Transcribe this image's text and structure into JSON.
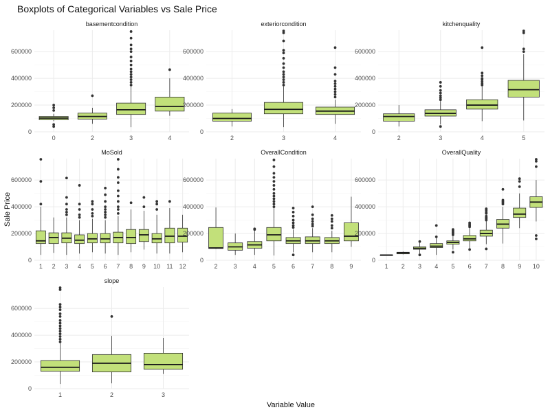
{
  "chart_data": {
    "type": "boxplot",
    "title": "Boxplots of Categorical Variables vs Sale Price",
    "xlabel": "Variable Value",
    "ylabel": "Sale Price",
    "ylim": [
      0,
      760000
    ],
    "yticks": [
      0,
      200000,
      400000,
      600000
    ],
    "ytick_labels": [
      "0",
      "200000",
      "400000",
      "600000"
    ],
    "grid": true,
    "colors": {
      "box_fill": "#c2e07a",
      "box_stroke": "#2e2e2e",
      "grid": "#ebebeb",
      "point": "#333333"
    },
    "panels": [
      {
        "name": "basementcondition",
        "categories": [
          "0",
          "2",
          "3",
          "4"
        ],
        "boxes": [
          {
            "q1": 90000,
            "median": 103000,
            "q3": 115000,
            "whisker_low": 80000,
            "whisker_high": 135000,
            "outliers": [
              40000,
              55000,
              160000,
              180000,
              200000
            ]
          },
          {
            "q1": 95000,
            "median": 115000,
            "q3": 140000,
            "whisker_low": 60000,
            "whisker_high": 180000,
            "outliers": [
              270000
            ]
          },
          {
            "q1": 130000,
            "median": 165000,
            "q3": 215000,
            "whisker_low": 35000,
            "whisker_high": 340000,
            "outliers": [
              350000,
              370000,
              390000,
              410000,
              430000,
              450000,
              470000,
              500000,
              530000,
              560000,
              600000,
              620000,
              650000,
              700000,
              750000
            ]
          },
          {
            "q1": 155000,
            "median": 190000,
            "q3": 260000,
            "whisker_low": 120000,
            "whisker_high": 400000,
            "outliers": [
              465000
            ]
          }
        ]
      },
      {
        "name": "exteriorcondition",
        "categories": [
          "2",
          "3",
          "4"
        ],
        "boxes": [
          {
            "q1": 80000,
            "median": 100000,
            "q3": 140000,
            "whisker_low": 40000,
            "whisker_high": 170000,
            "outliers": []
          },
          {
            "q1": 135000,
            "median": 168000,
            "q3": 220000,
            "whisker_low": 35000,
            "whisker_high": 340000,
            "outliers": [
              350000,
              370000,
              390000,
              410000,
              430000,
              450000,
              480000,
              510000,
              550000,
              590000,
              610000,
              680000,
              740000,
              755000
            ]
          },
          {
            "q1": 130000,
            "median": 155000,
            "q3": 185000,
            "whisker_low": 60000,
            "whisker_high": 240000,
            "outliers": [
              260000,
              280000,
              300000,
              320000,
              340000,
              360000,
              380000,
              430000,
              480000,
              630000
            ]
          }
        ]
      },
      {
        "name": "kitchenquality",
        "categories": [
          "2",
          "3",
          "4",
          "5"
        ],
        "boxes": [
          {
            "q1": 80000,
            "median": 115000,
            "q3": 135000,
            "whisker_low": 40000,
            "whisker_high": 200000,
            "outliers": []
          },
          {
            "q1": 118000,
            "median": 138000,
            "q3": 165000,
            "whisker_low": 55000,
            "whisker_high": 230000,
            "outliers": [
              40000,
              240000,
              255000,
              270000,
              290000,
              310000,
              340000,
              370000
            ]
          },
          {
            "q1": 170000,
            "median": 200000,
            "q3": 240000,
            "whisker_low": 80000,
            "whisker_high": 340000,
            "outliers": [
              350000,
              360000,
              375000,
              390000,
              400000,
              420000,
              440000,
              630000
            ]
          },
          {
            "q1": 260000,
            "median": 315000,
            "q3": 385000,
            "whisker_low": 85000,
            "whisker_high": 580000,
            "outliers": [
              600000,
              620000,
              740000,
              755000
            ]
          }
        ]
      },
      {
        "name": "MoSold",
        "categories": [
          "1",
          "2",
          "3",
          "4",
          "5",
          "6",
          "7",
          "8",
          "9",
          "10",
          "11",
          "12"
        ],
        "boxes": [
          {
            "q1": 125000,
            "median": 145000,
            "q3": 220000,
            "whisker_low": 40000,
            "whisker_high": 400000,
            "outliers": [
              420000,
              590000,
              755000
            ]
          },
          {
            "q1": 125000,
            "median": 170000,
            "q3": 205000,
            "whisker_low": 55000,
            "whisker_high": 320000,
            "outliers": []
          },
          {
            "q1": 130000,
            "median": 165000,
            "q3": 205000,
            "whisker_low": 40000,
            "whisker_high": 320000,
            "outliers": [
              340000,
              360000,
              380000,
              420000,
              470000,
              615000
            ]
          },
          {
            "q1": 125000,
            "median": 150000,
            "q3": 190000,
            "whisker_low": 50000,
            "whisker_high": 300000,
            "outliers": [
              320000,
              340000,
              380000,
              420000,
              560000
            ]
          },
          {
            "q1": 130000,
            "median": 160000,
            "q3": 200000,
            "whisker_low": 60000,
            "whisker_high": 310000,
            "outliers": [
              330000,
              350000,
              380000,
              420000,
              440000
            ]
          },
          {
            "q1": 130000,
            "median": 160000,
            "q3": 200000,
            "whisker_low": 50000,
            "whisker_high": 300000,
            "outliers": [
              320000,
              340000,
              360000,
              380000,
              400000,
              440000,
              490000,
              540000
            ]
          },
          {
            "q1": 130000,
            "median": 170000,
            "q3": 210000,
            "whisker_low": 40000,
            "whisker_high": 330000,
            "outliers": [
              350000,
              380000,
              400000,
              440000,
              480000,
              520000,
              580000,
              620000,
              680000,
              755000
            ]
          },
          {
            "q1": 125000,
            "median": 170000,
            "q3": 230000,
            "whisker_low": 60000,
            "whisker_high": 380000,
            "outliers": [
              430000
            ]
          },
          {
            "q1": 140000,
            "median": 190000,
            "q3": 230000,
            "whisker_low": 80000,
            "whisker_high": 370000,
            "outliers": [
              400000,
              470000
            ]
          },
          {
            "q1": 130000,
            "median": 160000,
            "q3": 200000,
            "whisker_low": 50000,
            "whisker_high": 340000,
            "outliers": [
              380000,
              420000,
              440000
            ]
          },
          {
            "q1": 130000,
            "median": 180000,
            "q3": 240000,
            "whisker_low": 50000,
            "whisker_high": 390000,
            "outliers": [
              440000
            ]
          },
          {
            "q1": 135000,
            "median": 180000,
            "q3": 240000,
            "whisker_low": 60000,
            "whisker_high": 340000,
            "outliers": []
          }
        ]
      },
      {
        "name": "OverallCondition",
        "categories": [
          "2",
          "3",
          "4",
          "5",
          "6",
          "7",
          "8",
          "9"
        ],
        "boxes": [
          {
            "q1": 88000,
            "median": 92000,
            "q3": 245000,
            "whisker_low": 85000,
            "whisker_high": 395000,
            "outliers": []
          },
          {
            "q1": 75000,
            "median": 100000,
            "q3": 130000,
            "whisker_low": 40000,
            "whisker_high": 200000,
            "outliers": []
          },
          {
            "q1": 90000,
            "median": 115000,
            "q3": 140000,
            "whisker_low": 40000,
            "whisker_high": 220000,
            "outliers": [
              230000,
              235000
            ]
          },
          {
            "q1": 145000,
            "median": 190000,
            "q3": 245000,
            "whisker_low": 35000,
            "whisker_high": 390000,
            "outliers": [
              400000,
              420000,
              440000,
              460000,
              480000,
              500000,
              530000,
              560000,
              590000,
              620000,
              650000,
              700000,
              750000
            ]
          },
          {
            "q1": 125000,
            "median": 145000,
            "q3": 170000,
            "whisker_low": 60000,
            "whisker_high": 230000,
            "outliers": [
              40000,
              245000,
              260000,
              280000,
              300000,
              330000,
              360000,
              390000
            ]
          },
          {
            "q1": 125000,
            "median": 145000,
            "q3": 175000,
            "whisker_low": 60000,
            "whisker_high": 240000,
            "outliers": [
              255000,
              270000,
              290000,
              310000,
              340000,
              400000
            ]
          },
          {
            "q1": 125000,
            "median": 145000,
            "q3": 170000,
            "whisker_low": 60000,
            "whisker_high": 220000,
            "outliers": [
              240000,
              260000,
              290000,
              310000,
              335000
            ]
          },
          {
            "q1": 145000,
            "median": 180000,
            "q3": 280000,
            "whisker_low": 100000,
            "whisker_high": 475000,
            "outliers": []
          }
        ]
      },
      {
        "name": "OverallQuality",
        "categories": [
          "1",
          "2",
          "3",
          "4",
          "5",
          "6",
          "7",
          "8",
          "9",
          "10"
        ],
        "boxes": [
          {
            "q1": 38000,
            "median": 39000,
            "q3": 40000,
            "whisker_low": 37000,
            "whisker_high": 41000,
            "outliers": []
          },
          {
            "q1": 48000,
            "median": 55000,
            "q3": 60000,
            "whisker_low": 44000,
            "whisker_high": 65000,
            "outliers": []
          },
          {
            "q1": 82000,
            "median": 90000,
            "q3": 100000,
            "whisker_low": 50000,
            "whisker_high": 130000,
            "outliers": [
              40000,
              140000
            ]
          },
          {
            "q1": 95000,
            "median": 105000,
            "q3": 125000,
            "whisker_low": 40000,
            "whisker_high": 165000,
            "outliers": [
              175000,
              260000
            ]
          },
          {
            "q1": 120000,
            "median": 133000,
            "q3": 145000,
            "whisker_low": 80000,
            "whisker_high": 180000,
            "outliers": [
              60000,
              190000,
              200000,
              210000,
              220000,
              230000
            ]
          },
          {
            "q1": 145000,
            "median": 160000,
            "q3": 185000,
            "whisker_low": 90000,
            "whisker_high": 240000,
            "outliers": [
              80000,
              250000,
              260000,
              270000,
              280000
            ]
          },
          {
            "q1": 180000,
            "median": 200000,
            "q3": 225000,
            "whisker_low": 120000,
            "whisker_high": 290000,
            "outliers": [
              85000,
              300000,
              310000,
              320000,
              330000,
              350000,
              360000,
              375000,
              385000
            ]
          },
          {
            "q1": 240000,
            "median": 270000,
            "q3": 305000,
            "whisker_low": 125000,
            "whisker_high": 400000,
            "outliers": [
              420000,
              430000,
              440000,
              450000,
              530000
            ]
          },
          {
            "q1": 320000,
            "median": 345000,
            "q3": 390000,
            "whisker_low": 240000,
            "whisker_high": 500000,
            "outliers": [
              550000,
              590000,
              610000
            ]
          },
          {
            "q1": 395000,
            "median": 435000,
            "q3": 475000,
            "whisker_low": 290000,
            "whisker_high": 600000,
            "outliers": [
              160000,
              185000,
              700000,
              740000,
              755000
            ]
          }
        ]
      },
      {
        "name": "slope",
        "categories": [
          "1",
          "2",
          "3"
        ],
        "boxes": [
          {
            "q1": 130000,
            "median": 160000,
            "q3": 210000,
            "whisker_low": 35000,
            "whisker_high": 340000,
            "outliers": [
              350000,
              370000,
              390000,
              410000,
              430000,
              450000,
              470000,
              490000,
              510000,
              540000,
              560000,
              590000,
              610000,
              630000,
              740000,
              755000
            ]
          },
          {
            "q1": 125000,
            "median": 190000,
            "q3": 255000,
            "whisker_low": 40000,
            "whisker_high": 395000,
            "outliers": [
              540000
            ]
          },
          {
            "q1": 145000,
            "median": 180000,
            "q3": 265000,
            "whisker_low": 110000,
            "whisker_high": 380000,
            "outliers": []
          }
        ]
      }
    ]
  }
}
